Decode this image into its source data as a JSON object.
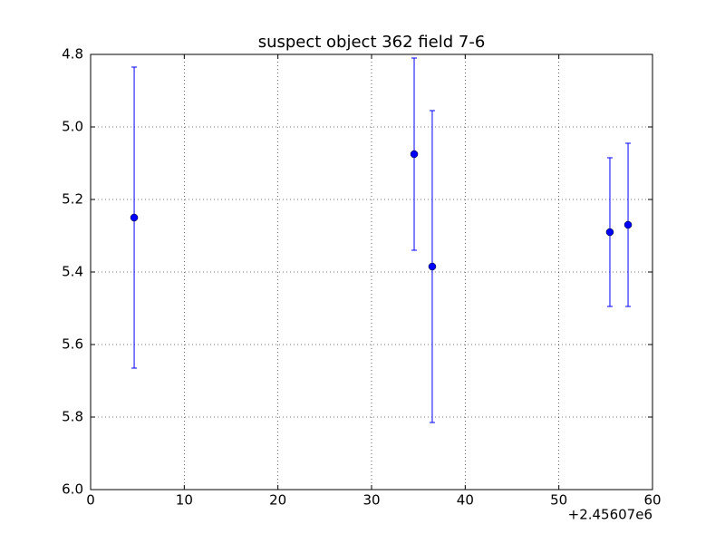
{
  "chart_data": {
    "type": "errorbar",
    "title": "suspect object 362 field 7-6",
    "x_offset_label": "+2.45607e6",
    "series": [
      {
        "color": "#0000ff",
        "x": [
          4.65,
          34.55,
          36.48,
          55.45,
          57.39
        ],
        "values": [
          5.25,
          5.075,
          5.385,
          5.29,
          5.27
        ],
        "errors": [
          0.415,
          0.265,
          0.43,
          0.205,
          0.225
        ]
      }
    ],
    "xlim": [
      0,
      60
    ],
    "xticks": [
      0,
      10,
      20,
      30,
      40,
      50,
      60
    ],
    "ylim": [
      6,
      4.8
    ],
    "yticks": [
      4.8,
      {
        "value": 5,
        "label": "5.0"
      },
      5.2,
      5.4,
      5.6,
      5.8,
      {
        "value": 6,
        "label": "6.0"
      }
    ],
    "grid": true
  }
}
